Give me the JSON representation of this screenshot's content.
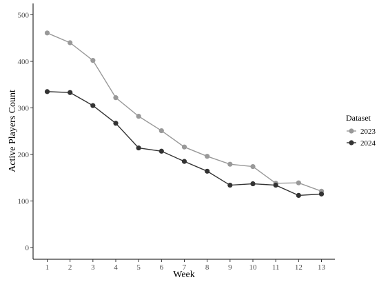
{
  "chart_data": {
    "type": "line",
    "title": "",
    "xlabel": "Week",
    "ylabel": "Active Players Count",
    "x": [
      1,
      2,
      3,
      4,
      5,
      6,
      7,
      8,
      9,
      10,
      11,
      12,
      13
    ],
    "xticks": [
      "1",
      "2",
      "3",
      "4",
      "5",
      "6",
      "7",
      "8",
      "9",
      "10",
      "11",
      "12",
      "13"
    ],
    "yticks": [
      0,
      100,
      200,
      300,
      400,
      500
    ],
    "ylim": [
      0,
      500
    ],
    "grid": false,
    "legend": {
      "title": "Dataset",
      "placement": "right"
    },
    "series": [
      {
        "name": "2023",
        "color": "#999999",
        "values": [
          461,
          440,
          402,
          322,
          282,
          251,
          216,
          196,
          179,
          174,
          138,
          139,
          121
        ]
      },
      {
        "name": "2024",
        "color": "#333333",
        "values": [
          335,
          333,
          305,
          267,
          214,
          207,
          185,
          164,
          134,
          137,
          134,
          112,
          115
        ]
      }
    ]
  }
}
